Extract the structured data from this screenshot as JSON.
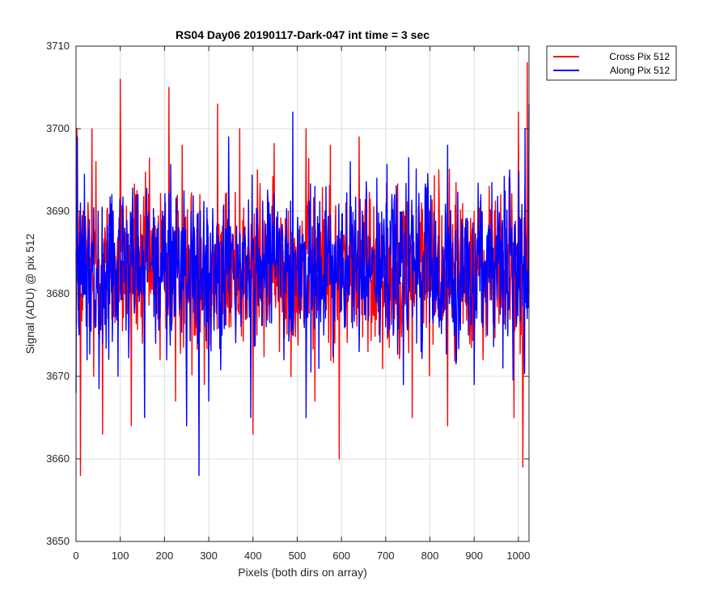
{
  "chart_data": {
    "type": "line",
    "title": "RS04 Day06 20190117-Dark-047 int time = 3 sec",
    "xlabel": "Pixels (both dirs on array)",
    "ylabel": "Signal (ADU) @ pix 512",
    "xlim": [
      0,
      1024
    ],
    "ylim": [
      3650,
      3710
    ],
    "xticks": [
      0,
      100,
      200,
      300,
      400,
      500,
      600,
      700,
      800,
      900,
      1000
    ],
    "yticks": [
      3650,
      3660,
      3670,
      3680,
      3690,
      3700,
      3710
    ],
    "grid": true,
    "legend": "outside-top-right",
    "series": [
      {
        "name": "Cross Pix 512",
        "color": "#ff0000",
        "mean": 3683,
        "approx_range": [
          3658,
          3708
        ],
        "x": [
          0,
          2,
          5,
          8,
          10,
          12,
          20,
          30,
          36,
          40,
          45,
          55,
          60,
          65,
          72,
          80,
          95,
          100,
          110,
          125,
          135,
          150,
          160,
          175,
          190,
          200,
          210,
          215,
          225,
          240,
          255,
          270,
          280,
          290,
          310,
          320,
          335,
          350,
          370,
          380,
          400,
          410,
          420,
          430,
          440,
          460,
          480,
          500,
          510,
          520,
          540,
          560,
          575,
          590,
          595,
          600,
          620,
          640,
          660,
          680,
          700,
          720,
          740,
          760,
          780,
          800,
          820,
          840,
          860,
          880,
          900,
          920,
          940,
          960,
          980,
          990,
          1000,
          1005,
          1010,
          1015,
          1020,
          1024
        ],
        "y": [
          3685,
          3700,
          3678,
          3690,
          3658,
          3680,
          3686,
          3676,
          3700,
          3670,
          3696,
          3681,
          3663,
          3688,
          3677,
          3690,
          3676,
          3706,
          3680,
          3664,
          3692,
          3674,
          3686,
          3680,
          3672,
          3690,
          3705,
          3679,
          3667,
          3698,
          3683,
          3675,
          3692,
          3669,
          3680,
          3703,
          3683,
          3676,
          3700,
          3680,
          3663,
          3695,
          3681,
          3677,
          3684,
          3673,
          3690,
          3685,
          3678,
          3700,
          3667,
          3689,
          3698,
          3678,
          3660,
          3686,
          3681,
          3699,
          3673,
          3691,
          3683,
          3677,
          3690,
          3665,
          3688,
          3681,
          3695,
          3664,
          3686,
          3679,
          3690,
          3672,
          3688,
          3692,
          3680,
          3665,
          3702,
          3679,
          3659,
          3693,
          3708,
          3680
        ]
      },
      {
        "name": "Along Pix 512",
        "color": "#0000ff",
        "mean": 3683,
        "approx_range": [
          3658,
          3703
        ],
        "x": [
          0,
          3,
          6,
          10,
          15,
          25,
          35,
          45,
          50,
          60,
          70,
          85,
          95,
          105,
          120,
          140,
          155,
          165,
          180,
          195,
          205,
          220,
          240,
          250,
          260,
          275,
          278,
          285,
          300,
          315,
          330,
          345,
          360,
          380,
          395,
          410,
          430,
          450,
          470,
          490,
          505,
          520,
          540,
          560,
          580,
          600,
          620,
          640,
          650,
          665,
          680,
          700,
          720,
          740,
          760,
          780,
          800,
          820,
          840,
          860,
          880,
          900,
          915,
          930,
          950,
          965,
          980,
          995,
          1005,
          1015,
          1020,
          1024
        ],
        "y": [
          3668,
          3699,
          3676,
          3691,
          3680,
          3672,
          3686,
          3676,
          3690,
          3674,
          3684,
          3681,
          3670,
          3688,
          3676,
          3692,
          3665,
          3686,
          3674,
          3690,
          3672,
          3687,
          3682,
          3664,
          3690,
          3674,
          3658,
          3683,
          3667,
          3686,
          3675,
          3699,
          3678,
          3688,
          3665,
          3690,
          3676,
          3684,
          3672,
          3702,
          3680,
          3665,
          3693,
          3675,
          3686,
          3678,
          3696,
          3673,
          3687,
          3683,
          3694,
          3676,
          3692,
          3669,
          3684,
          3673,
          3690,
          3678,
          3698,
          3672,
          3686,
          3669,
          3692,
          3675,
          3687,
          3671,
          3695,
          3676,
          3689,
          3700,
          3677,
          3703
        ]
      }
    ]
  }
}
